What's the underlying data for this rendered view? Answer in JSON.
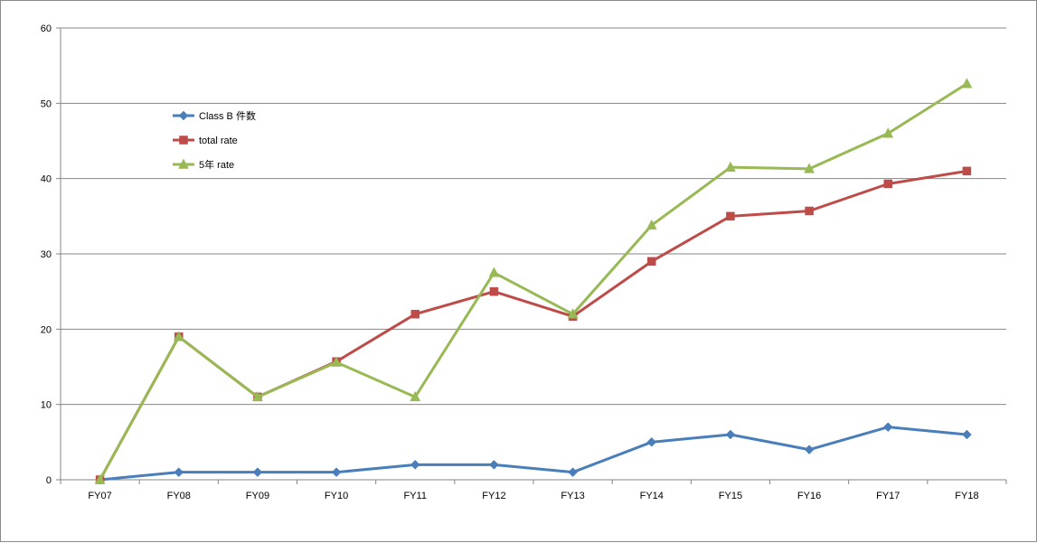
{
  "chart_data": {
    "type": "line",
    "title": "",
    "xlabel": "",
    "ylabel": "",
    "categories": [
      "FY07",
      "FY08",
      "FY09",
      "FY10",
      "FY11",
      "FY12",
      "FY13",
      "FY14",
      "FY15",
      "FY16",
      "FY17",
      "FY18"
    ],
    "ylim": [
      0,
      60
    ],
    "yticks": [
      "0",
      "10",
      "20",
      "30",
      "40",
      "50",
      "60"
    ],
    "grid": true,
    "legend_position": "top-left",
    "series": [
      {
        "name": "Class B 件数",
        "color": "#4a7ebb",
        "marker": "diamond",
        "values": [
          0,
          1,
          1,
          1,
          2,
          2,
          1,
          5,
          6,
          4,
          7,
          6
        ]
      },
      {
        "name": "total rate",
        "color": "#be4b48",
        "marker": "square",
        "values": [
          0,
          19,
          11,
          15.7,
          22,
          25,
          21.7,
          29,
          35,
          35.7,
          39.3,
          41
        ]
      },
      {
        "name": "5年 rate",
        "color": "#98b954",
        "marker": "triangle",
        "values": [
          0,
          19,
          11,
          15.6,
          11,
          27.5,
          22,
          33.8,
          41.5,
          41.3,
          46,
          52.6
        ]
      }
    ]
  }
}
